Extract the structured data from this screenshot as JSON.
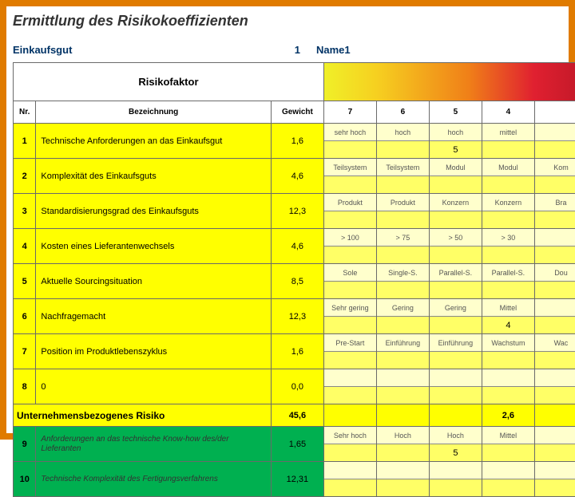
{
  "title": "Ermittlung des Risikokoeffizienten",
  "meta": {
    "label": "Einkaufsgut",
    "num": "1",
    "name": "Name1"
  },
  "headers": {
    "risikofaktor": "Risikofaktor",
    "nr": "Nr.",
    "bezeichnung": "Bezeichnung",
    "gewicht": "Gewicht",
    "c7": "7",
    "c6": "6",
    "c5": "5",
    "c4": "4"
  },
  "rows": [
    {
      "nr": "1",
      "name": "Technische Anforderungen an das Einkaufsgut",
      "gew": "1,6",
      "labels": [
        "sehr hoch",
        "hoch",
        "hoch",
        "mittel"
      ],
      "vals": [
        "",
        "",
        "5",
        ""
      ]
    },
    {
      "nr": "2",
      "name": "Komplexität des Einkaufsguts",
      "gew": "4,6",
      "labels": [
        "Teilsystem",
        "Teilsystem",
        "Modul",
        "Modul"
      ],
      "vals": [
        "",
        "",
        "",
        ""
      ],
      "extra": "Kom"
    },
    {
      "nr": "3",
      "name": "Standardisierungsgrad des Einkaufsguts",
      "gew": "12,3",
      "labels": [
        "Produkt",
        "Produkt",
        "Konzern",
        "Konzern"
      ],
      "vals": [
        "",
        "",
        "",
        ""
      ],
      "extra": "Bra"
    },
    {
      "nr": "4",
      "name": "Kosten eines Lieferantenwechsels",
      "gew": "4,6",
      "labels": [
        "> 100",
        "> 75",
        "> 50",
        "> 30"
      ],
      "vals": [
        "",
        "",
        "",
        ""
      ]
    },
    {
      "nr": "5",
      "name": "Aktuelle Sourcingsituation",
      "gew": "8,5",
      "labels": [
        "Sole",
        "Single-S.",
        "Parallel-S.",
        "Parallel-S."
      ],
      "vals": [
        "",
        "",
        "",
        ""
      ],
      "extra": "Dou"
    },
    {
      "nr": "6",
      "name": "Nachfragemacht",
      "gew": "12,3",
      "labels": [
        "Sehr gering",
        "Gering",
        "Gering",
        "Mittel"
      ],
      "vals": [
        "",
        "",
        "",
        "4"
      ]
    },
    {
      "nr": "7",
      "name": "Position im Produktlebenszyklus",
      "gew": "1,6",
      "labels": [
        "Pre-Start",
        "Einführung",
        "Einführung",
        "Wachstum"
      ],
      "vals": [
        "",
        "",
        "",
        ""
      ],
      "extra": "Wac"
    },
    {
      "nr": "8",
      "name": "0",
      "gew": "0,0",
      "labels": [
        "",
        "",
        "",
        ""
      ],
      "vals": [
        "",
        "",
        "",
        ""
      ]
    }
  ],
  "section": {
    "name": "Unternehmensbezogenes Risiko",
    "gew": "45,6",
    "score": "2,6"
  },
  "rows2": [
    {
      "nr": "9",
      "name": "Anforderungen an das technische Know-how des/der Lieferanten",
      "gew": "1,65",
      "labels": [
        "Sehr hoch",
        "Hoch",
        "Hoch",
        "Mittel"
      ],
      "vals": [
        "",
        "",
        "5",
        ""
      ],
      "green": true
    },
    {
      "nr": "10",
      "name": "Technische Komplexität des Fertigungsverfahrens",
      "gew": "12,31",
      "labels": [
        "",
        "",
        "",
        ""
      ],
      "vals": [
        "",
        "",
        "",
        ""
      ],
      "green": true
    }
  ]
}
